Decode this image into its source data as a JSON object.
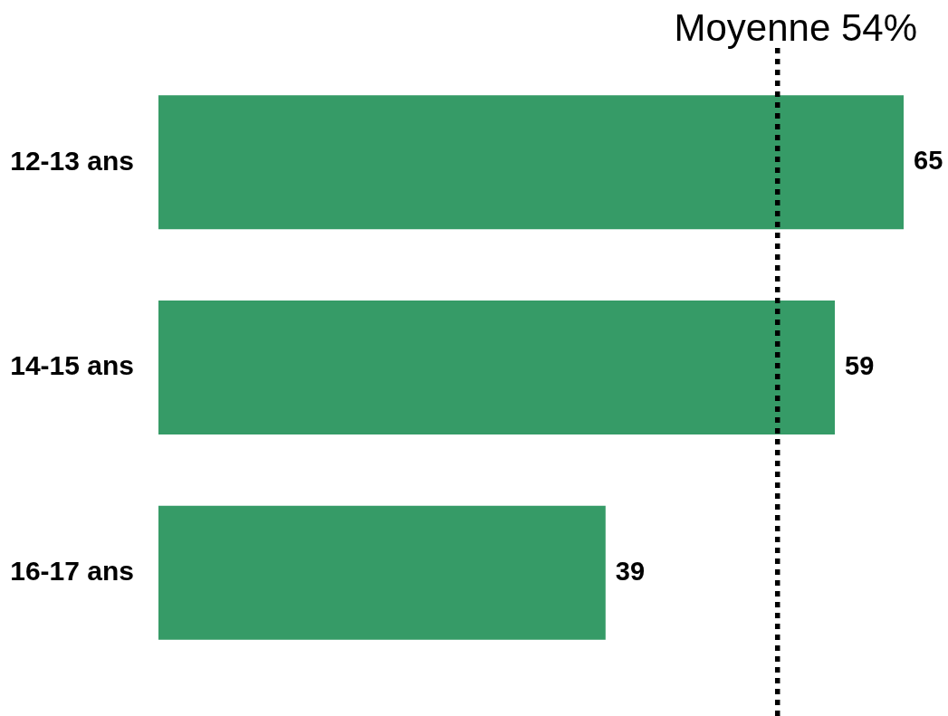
{
  "chart_data": {
    "type": "bar",
    "orientation": "horizontal",
    "categories": [
      "12-13 ans",
      "14-15 ans",
      "16-17 ans"
    ],
    "values": [
      65,
      59,
      39
    ],
    "color": "#369b67",
    "data_labels": true,
    "tick_labels": "y",
    "ref_lines": [
      {
        "axis": "x",
        "value": 54,
        "label": "Moyenne 54%",
        "color": "#000000",
        "line_style": "dotted"
      }
    ]
  }
}
